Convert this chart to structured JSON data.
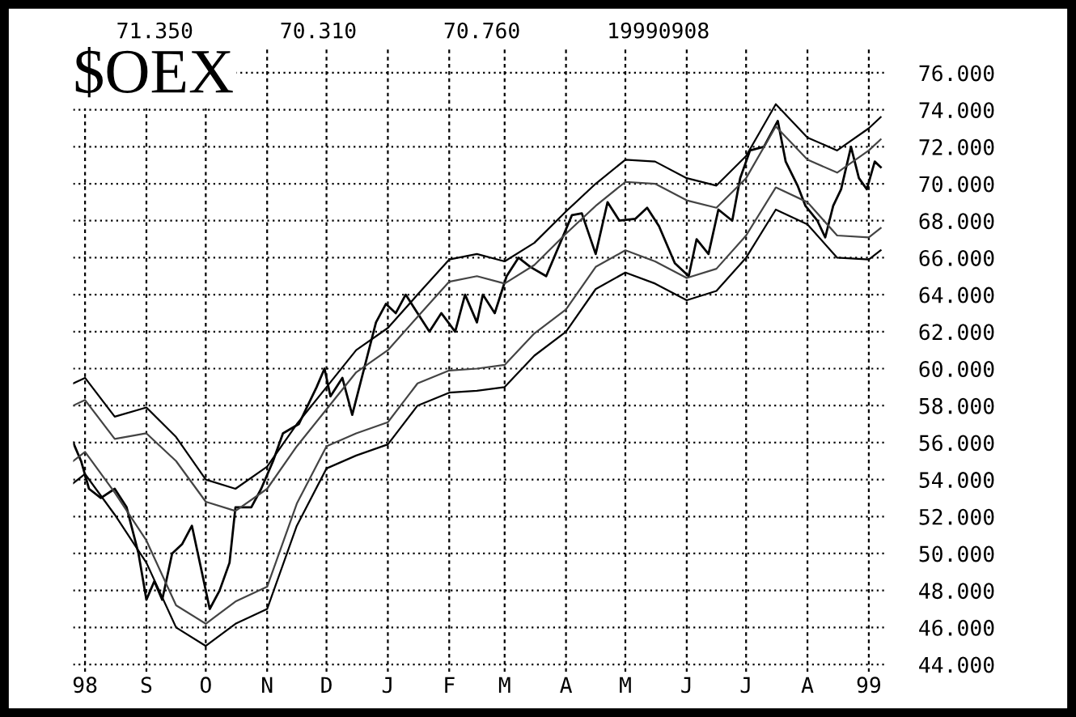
{
  "chart_data": {
    "type": "line",
    "title": "$OEX",
    "annotations": [
      "71.350",
      "70.310",
      "70.760",
      "19990908"
    ],
    "series": [
      {
        "color": "#000000",
        "x": [
          "1998-07-26",
          "1998-07-30",
          "1998-08-03",
          "1998-08-09",
          "1998-08-16",
          "1998-08-22",
          "1998-08-28",
          "1998-09-01",
          "1998-09-05",
          "1998-09-09",
          "1998-09-14",
          "1998-09-19",
          "1998-09-24",
          "1998-09-29",
          "1998-10-03",
          "1998-10-08",
          "1998-10-13",
          "1998-10-16",
          "1998-10-24",
          "1998-10-29",
          "1998-11-04",
          "1998-11-09",
          "1998-11-17",
          "1998-11-26",
          "1998-11-30",
          "1998-12-03",
          "1998-12-09",
          "1998-12-14",
          "1998-12-20",
          "1998-12-26",
          "1998-12-31",
          "1999-01-05",
          "1999-01-10",
          "1999-01-16",
          "1999-01-22",
          "1999-01-28",
          "1999-02-04",
          "1999-02-09",
          "1999-02-15",
          "1999-02-18",
          "1999-02-24",
          "1999-03-02",
          "1999-03-08",
          "1999-03-14",
          "1999-03-22",
          "1999-04-04",
          "1999-04-09",
          "1999-04-16",
          "1999-04-22",
          "1999-04-28",
          "1999-05-06",
          "1999-05-12",
          "1999-05-18",
          "1999-05-26",
          "1999-06-02",
          "1999-06-06",
          "1999-06-12",
          "1999-06-17",
          "1999-06-24",
          "1999-06-28",
          "1999-07-03",
          "1999-07-10",
          "1999-07-17",
          "1999-07-21",
          "1999-07-27",
          "1999-07-31",
          "1999-08-06",
          "1999-08-10",
          "1999-08-14",
          "1999-08-18",
          "1999-08-23",
          "1999-08-27",
          "1999-08-31",
          "1999-09-04",
          "1999-09-07"
        ],
        "values": [
          56,
          55,
          53.5,
          53,
          53.5,
          52.5,
          50,
          47.5,
          48.5,
          47.5,
          50,
          50.5,
          51.5,
          49,
          47,
          48,
          49.5,
          52.5,
          52.5,
          53.5,
          55,
          56.5,
          57,
          59,
          60,
          58.5,
          59.5,
          57.5,
          60,
          62.5,
          63.5,
          63,
          64,
          63,
          62,
          63,
          62,
          64,
          62.5,
          64,
          63,
          65,
          66,
          65.5,
          65,
          68.3,
          68.4,
          66.2,
          69,
          68,
          68.1,
          68.7,
          67.7,
          65.7,
          65,
          67,
          66.2,
          68.6,
          68,
          70.3,
          71.8,
          72,
          73.4,
          71.2,
          69.9,
          68.8,
          68,
          67.1,
          68.8,
          69.7,
          72,
          70.3,
          69.7,
          71.2,
          70.9
        ]
      },
      {
        "color": "#000000",
        "values": [
          59.2,
          59.5,
          57.4,
          57.9,
          56.3,
          54.0,
          53.5,
          54.7,
          57.0,
          59.0,
          61.0,
          62.2,
          64.0,
          65.9,
          66.2,
          65.8,
          66.8,
          68.5,
          70.0,
          71.3,
          71.2,
          70.3,
          69.9,
          71.5,
          74.3,
          72.5,
          71.8,
          73.0,
          73.6
        ]
      },
      {
        "color": "#444444",
        "values": [
          58.0,
          58.3,
          56.2,
          56.5,
          55.0,
          52.8,
          52.3,
          53.5,
          55.8,
          57.8,
          59.8,
          61.0,
          62.8,
          64.7,
          65.0,
          64.6,
          65.6,
          67.3,
          68.8,
          70.1,
          70.0,
          69.1,
          68.7,
          70.3,
          73.1,
          71.3,
          70.6,
          71.8,
          72.4
        ]
      },
      {
        "color": "#444444",
        "values": [
          55.0,
          55.5,
          53.3,
          50.7,
          47.2,
          46.2,
          47.4,
          48.2,
          52.7,
          55.8,
          56.5,
          57.1,
          59.2,
          59.9,
          60.0,
          60.2,
          61.9,
          63.2,
          65.5,
          66.4,
          65.8,
          64.9,
          65.4,
          67.2,
          69.8,
          69.0,
          67.2,
          67.1,
          67.6
        ]
      },
      {
        "color": "#000000",
        "values": [
          53.8,
          54.3,
          52.1,
          49.5,
          46.0,
          45.0,
          46.2,
          47.0,
          51.5,
          54.6,
          55.3,
          55.9,
          58.0,
          58.7,
          58.8,
          59.0,
          60.7,
          62.0,
          64.3,
          65.2,
          64.6,
          63.7,
          64.2,
          66.0,
          68.6,
          67.8,
          66.0,
          65.9,
          66.4
        ]
      }
    ],
    "x": [
      "1998-07-26",
      "1998-08-01",
      "1998-08-16",
      "1998-09-01",
      "1998-09-16",
      "1998-10-01",
      "1998-10-16",
      "1998-11-01",
      "1998-11-16",
      "1998-12-01",
      "1998-12-16",
      "1999-01-01",
      "1999-01-16",
      "1999-02-01",
      "1999-02-15",
      "1999-03-01",
      "1999-03-16",
      "1999-04-01",
      "1999-04-16",
      "1999-05-01",
      "1999-05-16",
      "1999-06-01",
      "1999-06-16",
      "1999-07-01",
      "1999-07-16",
      "1999-08-01",
      "1999-08-16",
      "1999-09-01",
      "1999-09-07"
    ],
    "xlim": [
      "1998-07-26",
      "1999-09-10"
    ],
    "xticks": [
      {
        "value": "1998-08-01",
        "label": "98"
      },
      {
        "value": "1998-09-01",
        "label": "S"
      },
      {
        "value": "1998-10-01",
        "label": "O"
      },
      {
        "value": "1998-11-01",
        "label": "N"
      },
      {
        "value": "1998-12-01",
        "label": "D"
      },
      {
        "value": "1999-01-01",
        "label": "J"
      },
      {
        "value": "1999-02-01",
        "label": "F"
      },
      {
        "value": "1999-03-01",
        "label": "M"
      },
      {
        "value": "1999-04-01",
        "label": "A"
      },
      {
        "value": "1999-05-01",
        "label": "M"
      },
      {
        "value": "1999-06-01",
        "label": "J"
      },
      {
        "value": "1999-07-01",
        "label": "J"
      },
      {
        "value": "1999-08-01",
        "label": "A"
      },
      {
        "value": "1999-09-01",
        "label": "99"
      }
    ],
    "ylim": [
      43.6,
      77.3
    ],
    "yticks": [
      {
        "value": 44,
        "label": "44.000"
      },
      {
        "value": 46,
        "label": "46.000"
      },
      {
        "value": 48,
        "label": "48.000"
      },
      {
        "value": 50,
        "label": "50.000"
      },
      {
        "value": 52,
        "label": "52.000"
      },
      {
        "value": 54,
        "label": "54.000"
      },
      {
        "value": 56,
        "label": "56.000"
      },
      {
        "value": 58,
        "label": "58.000"
      },
      {
        "value": 60,
        "label": "60.000"
      },
      {
        "value": 62,
        "label": "62.000"
      },
      {
        "value": 64,
        "label": "64.000"
      },
      {
        "value": 66,
        "label": "66.000"
      },
      {
        "value": 68,
        "label": "68.000"
      },
      {
        "value": 70,
        "label": "70.000"
      },
      {
        "value": 72,
        "label": "72.000"
      },
      {
        "value": 74,
        "label": "74.000"
      },
      {
        "value": 76,
        "label": "76.000"
      }
    ],
    "grid": true,
    "marker": "none",
    "line_style": "solid"
  }
}
